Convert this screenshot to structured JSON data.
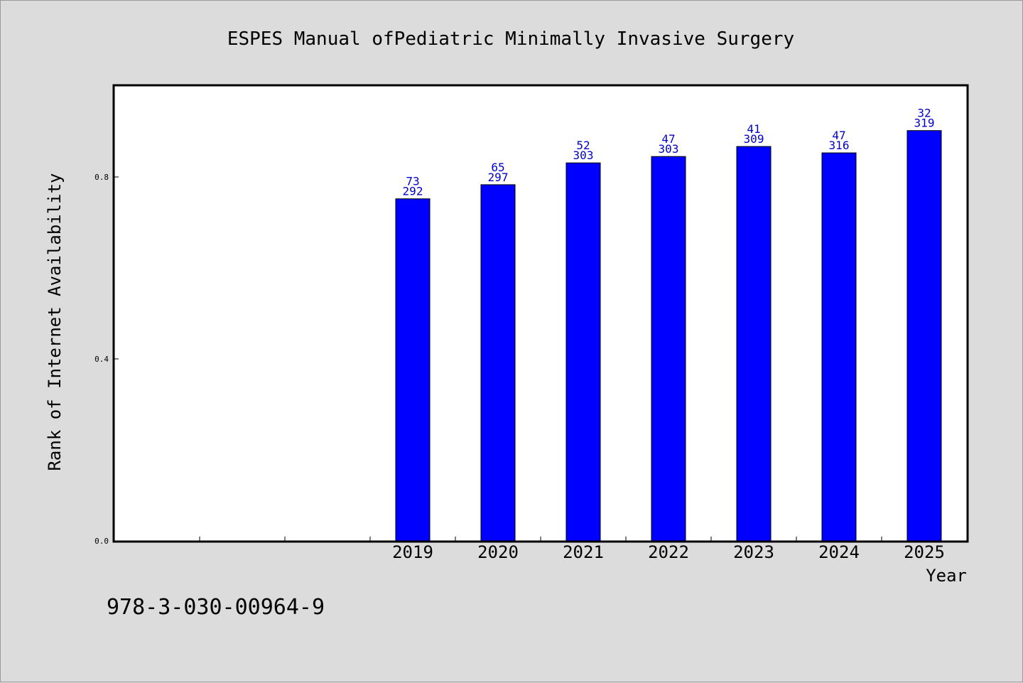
{
  "chart_data": {
    "type": "bar",
    "title": "ESPES Manual ofPediatric Minimally Invasive Surgery",
    "xlabel": "Year",
    "ylabel": "Rank of Internet Availability",
    "categories": [
      "",
      "",
      "",
      "2019",
      "2020",
      "2021",
      "2022",
      "2023",
      "2024",
      "2025"
    ],
    "series": [
      {
        "values": [
          null,
          null,
          null,
          0.752,
          0.783,
          0.831,
          0.845,
          0.867,
          0.853,
          0.902
        ],
        "top_labels": [
          "",
          "",
          "",
          "73",
          "65",
          "52",
          "47",
          "41",
          "47",
          "32"
        ],
        "bottom_labels": [
          "",
          "",
          "",
          "292",
          "297",
          "303",
          "303",
          "309",
          "316",
          "319"
        ]
      }
    ],
    "yticks": [
      "0.0",
      "0.4",
      "0.8"
    ],
    "ylim": [
      0,
      1.0
    ],
    "bar_color": "#0000ff",
    "label_color": "#0000cc",
    "grid": false
  },
  "footer": {
    "isbn": "978-3-030-00964-9"
  }
}
